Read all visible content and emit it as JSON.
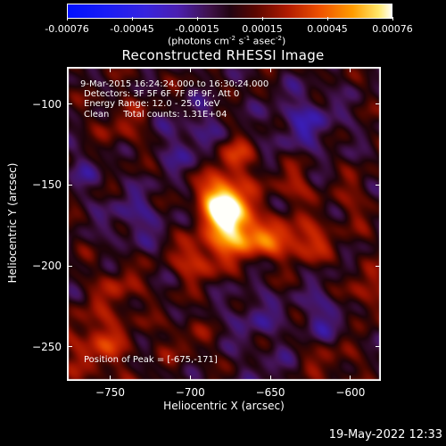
{
  "colorbar": {
    "ticks": [
      "-0.00076",
      "-0.00045",
      "-0.00015",
      "0.00015",
      "0.00045",
      "0.00076"
    ],
    "unit": "(photons cm",
    "unit_exp1": "-2",
    "unit_mid": " s",
    "unit_exp2": "-1",
    "unit_mid2": " asec",
    "unit_exp3": "-2",
    "unit_end": ")",
    "gradient_colors": [
      "#0011ff",
      "#3724de",
      "#3e1248",
      "#210412",
      "#b11b00",
      "#ef5200",
      "#ff9c00",
      "#fffef6"
    ]
  },
  "chart_data": {
    "type": "heatmap",
    "title": "Reconstructed RHESSI Image",
    "xlabel": "Heliocentric X (arcsec)",
    "ylabel": "Heliocentric Y (arcsec)",
    "xlim": [
      -777,
      -581
    ],
    "ylim": [
      -271,
      -77
    ],
    "x_ticks": [
      -750,
      -700,
      -650,
      -600
    ],
    "y_ticks": [
      -100,
      -150,
      -200,
      -250
    ],
    "x_tick_labels": [
      "−750",
      "−700",
      "−650",
      "−600"
    ],
    "y_tick_labels": [
      "−100",
      "−150",
      "−200",
      "−250"
    ],
    "color_range": [
      -0.00076,
      0.00076
    ],
    "peak": [
      -675,
      -171
    ],
    "sources": [
      {
        "x": -675,
        "y": -171,
        "amplitude": 0.00076,
        "sx": 10,
        "sy": 13
      },
      {
        "x": -683,
        "y": -158,
        "amplitude": 0.00048,
        "sx": 9,
        "sy": 9
      },
      {
        "x": -652,
        "y": -184,
        "amplitude": 0.00038,
        "sx": 16,
        "sy": 8
      },
      {
        "x": -696,
        "y": -196,
        "amplitude": 0.0003,
        "sx": 10,
        "sy": 9
      },
      {
        "x": -672,
        "y": -133,
        "amplitude": 0.00026,
        "sx": 9,
        "sy": 9
      },
      {
        "x": -636,
        "y": -150,
        "amplitude": 0.00022,
        "sx": 8,
        "sy": 8
      },
      {
        "x": -625,
        "y": -184,
        "amplitude": 0.00022,
        "sx": 10,
        "sy": 9
      },
      {
        "x": -758,
        "y": -248,
        "amplitude": 0.00028,
        "sx": 14,
        "sy": 14
      },
      {
        "x": -745,
        "y": -214,
        "amplitude": 0.00018,
        "sx": 10,
        "sy": 10
      },
      {
        "x": -742,
        "y": -112,
        "amplitude": 0.00014,
        "sx": 12,
        "sy": 12
      },
      {
        "x": -590,
        "y": -218,
        "amplitude": 0.00022,
        "sx": 9,
        "sy": 11
      },
      {
        "x": -598,
        "y": -160,
        "amplitude": 0.00012,
        "sx": 9,
        "sy": 12
      },
      {
        "x": -612,
        "y": -260,
        "amplitude": 0.00014,
        "sx": 12,
        "sy": 9
      },
      {
        "x": -704,
        "y": -246,
        "amplitude": 0.00012,
        "sx": 10,
        "sy": 10
      },
      {
        "x": -705,
        "y": -125,
        "amplitude": -0.00016,
        "sx": 12,
        "sy": 12
      },
      {
        "x": -735,
        "y": -170,
        "amplitude": -0.00018,
        "sx": 13,
        "sy": 12
      },
      {
        "x": -628,
        "y": -110,
        "amplitude": -0.00022,
        "sx": 15,
        "sy": 13
      },
      {
        "x": -615,
        "y": -230,
        "amplitude": -0.00018,
        "sx": 12,
        "sy": 12
      },
      {
        "x": -660,
        "y": -232,
        "amplitude": -0.00016,
        "sx": 12,
        "sy": 12
      },
      {
        "x": -690,
        "y": -108,
        "amplitude": -0.0001,
        "sx": 10,
        "sy": 10
      },
      {
        "x": -765,
        "y": -140,
        "amplitude": -0.00012,
        "sx": 9,
        "sy": 10
      },
      {
        "x": -650,
        "y": -265,
        "amplitude": -0.0001,
        "sx": 12,
        "sy": 8
      }
    ]
  },
  "info": {
    "line1": "9-Mar-2015 16:24:24.000 to 16:30:24.000",
    "line2": "Detectors: 3F 5F 6F 7F 8F 9F, Att 0",
    "line3": "Energy Range: 12.0 - 25.0 keV",
    "line4": "Clean     Total counts: 1.31E+04",
    "peak_text": "Position of Peak = [-675,-171]"
  },
  "footer": {
    "date": "19-May-2022 12:33"
  }
}
